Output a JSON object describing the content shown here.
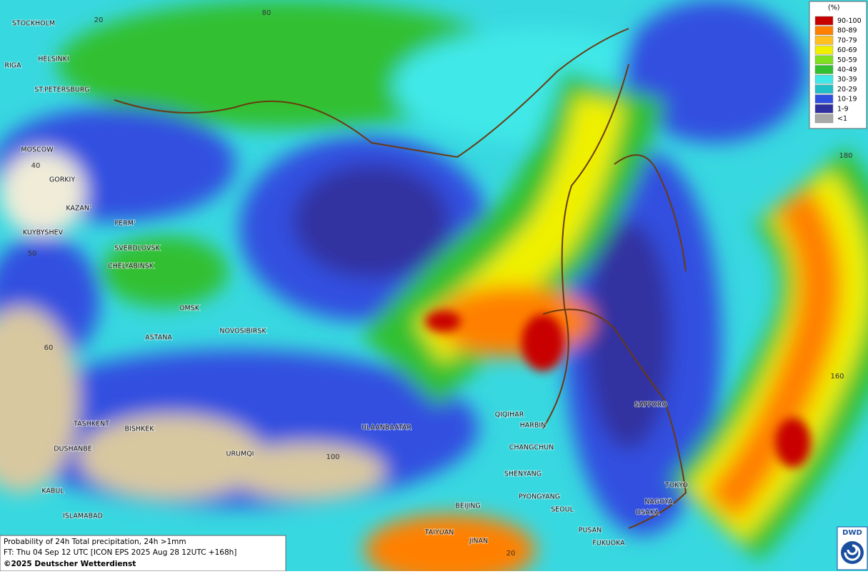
{
  "map": {
    "grid_labels": [
      "20",
      "80",
      "40",
      "50",
      "60",
      "100",
      "180",
      "160",
      "20"
    ],
    "cities": [
      "STOCKHOLM",
      "HELSINKI",
      "RIGA",
      "ST.PETERSBURG",
      "MOSCOW",
      "GORKIY",
      "KAZAN'",
      "KUYBYSHEV",
      "PERM'",
      "SVERDLOVSK",
      "CHELYABINSK",
      "OMSK",
      "ASTANA",
      "NOVOSIBIRSK",
      "TASHKENT",
      "BISHKEK",
      "DUSHANBE",
      "URUMQI",
      "KABUL",
      "ISLAMABAD",
      "ULAANBAATAR",
      "QIQIHAR",
      "HARBIN",
      "CHANGCHUN",
      "SHENYANG",
      "PYONGYANG",
      "BEIJING",
      "SEOUL",
      "TAIYUAN",
      "JINAN",
      "PUSAN",
      "FUKUOKA",
      "SAPPORO",
      "TOKYO",
      "NAGOYA",
      "OSAKA"
    ]
  },
  "legend": {
    "title": "(%)",
    "items": [
      {
        "label": "90-100",
        "color": "#c80000"
      },
      {
        "label": "80-89",
        "color": "#ff8000"
      },
      {
        "label": "70-79",
        "color": "#ffc020"
      },
      {
        "label": "60-69",
        "color": "#f0f000"
      },
      {
        "label": "50-59",
        "color": "#80e020"
      },
      {
        "label": "40-49",
        "color": "#30c030"
      },
      {
        "label": "30-39",
        "color": "#40e8e8"
      },
      {
        "label": "20-29",
        "color": "#20c0c8"
      },
      {
        "label": "10-19",
        "color": "#3050e0"
      },
      {
        "label": "1-9",
        "color": "#3030a0"
      },
      {
        "label": "<1",
        "color": "#a8a8a8"
      }
    ]
  },
  "footer": {
    "line1": "Probability of 24h Total precipitation, 24h >1mm",
    "line2": "FT: Thu 04 Sep 12 UTC [ICON EPS 2025 Aug 28 12UTC +168h]",
    "line3": "©2025 Deutscher Wetterdienst"
  },
  "logo": {
    "text": "DWD"
  }
}
